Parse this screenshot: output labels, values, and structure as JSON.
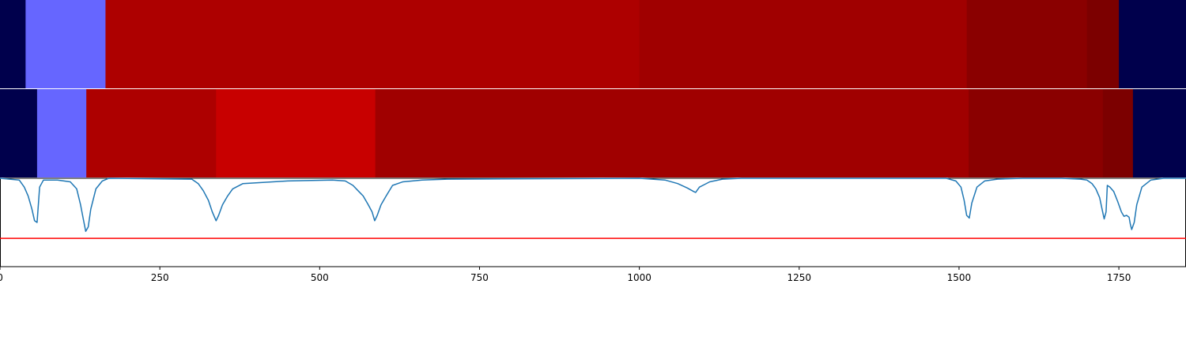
{
  "chart_data": [
    {
      "type": "heatmap",
      "segments": [
        {
          "start": 0,
          "end": 40,
          "color": "#00004c"
        },
        {
          "start": 40,
          "end": 165,
          "color": "#6666ff"
        },
        {
          "start": 165,
          "end": 1000,
          "color": "#ad0000"
        },
        {
          "start": 1000,
          "end": 1512,
          "color": "#a00000"
        },
        {
          "start": 1512,
          "end": 1700,
          "color": "#8a0000"
        },
        {
          "start": 1700,
          "end": 1750,
          "color": "#7c0000"
        },
        {
          "start": 1750,
          "end": 1855,
          "color": "#00004c"
        }
      ]
    },
    {
      "type": "heatmap",
      "segments": [
        {
          "start": 0,
          "end": 58,
          "color": "#00004c"
        },
        {
          "start": 58,
          "end": 135,
          "color": "#6666ff"
        },
        {
          "start": 135,
          "end": 338,
          "color": "#ad0000"
        },
        {
          "start": 338,
          "end": 587,
          "color": "#c80000"
        },
        {
          "start": 587,
          "end": 1515,
          "color": "#a00000"
        },
        {
          "start": 1515,
          "end": 1725,
          "color": "#8a0000"
        },
        {
          "start": 1725,
          "end": 1772,
          "color": "#7c0000"
        },
        {
          "start": 1772,
          "end": 1855,
          "color": "#00004c"
        }
      ]
    },
    {
      "type": "line",
      "xlim": [
        0,
        1855
      ],
      "ylim": [
        -1.0,
        0.0
      ],
      "x_ticks": [
        0,
        250,
        500,
        750,
        1000,
        1250,
        1500,
        1750
      ],
      "threshold": -0.68,
      "threshold_color": "#ff0000",
      "line_color": "#1f77b4",
      "series": [
        {
          "x": [
            0,
            30,
            38,
            44,
            50,
            54,
            58,
            62,
            68,
            90,
            110,
            120,
            126,
            130,
            134,
            138,
            142,
            150,
            160,
            170,
            300,
            310,
            318,
            326,
            332,
            338,
            342,
            348,
            356,
            364,
            380,
            450,
            520,
            540,
            552,
            560,
            568,
            576,
            582,
            586,
            590,
            596,
            604,
            614,
            630,
            660,
            700,
            1000,
            1040,
            1060,
            1075,
            1085,
            1088,
            1090,
            1094,
            1110,
            1130,
            1160,
            1480,
            1495,
            1503,
            1508,
            1512,
            1516,
            1520,
            1528,
            1540,
            1560,
            1600,
            1660,
            1690,
            1700,
            1708,
            1714,
            1720,
            1724,
            1727,
            1730,
            1732,
            1736,
            1742,
            1748,
            1754,
            1758,
            1762,
            1766,
            1768,
            1770,
            1774,
            1778,
            1786,
            1800,
            1820,
            1855
          ],
          "y": [
            0.0,
            -0.02,
            -0.1,
            -0.2,
            -0.35,
            -0.48,
            -0.5,
            -0.1,
            -0.02,
            -0.02,
            -0.04,
            -0.12,
            -0.3,
            -0.45,
            -0.6,
            -0.55,
            -0.35,
            -0.12,
            -0.03,
            0.0,
            -0.01,
            -0.06,
            -0.14,
            -0.25,
            -0.38,
            -0.48,
            -0.42,
            -0.3,
            -0.2,
            -0.12,
            -0.06,
            -0.03,
            -0.02,
            -0.03,
            -0.08,
            -0.14,
            -0.2,
            -0.3,
            -0.38,
            -0.48,
            -0.42,
            -0.3,
            -0.2,
            -0.08,
            -0.04,
            -0.02,
            -0.01,
            0.0,
            -0.02,
            -0.06,
            -0.11,
            -0.15,
            -0.16,
            -0.14,
            -0.1,
            -0.04,
            -0.01,
            0.0,
            0.0,
            -0.03,
            -0.1,
            -0.25,
            -0.42,
            -0.45,
            -0.28,
            -0.1,
            -0.03,
            -0.01,
            0.0,
            0.0,
            -0.01,
            -0.02,
            -0.06,
            -0.12,
            -0.22,
            -0.36,
            -0.46,
            -0.38,
            -0.08,
            -0.1,
            -0.15,
            -0.26,
            -0.38,
            -0.43,
            -0.42,
            -0.44,
            -0.52,
            -0.58,
            -0.5,
            -0.3,
            -0.1,
            -0.02,
            0.0,
            0.0
          ]
        }
      ]
    }
  ]
}
